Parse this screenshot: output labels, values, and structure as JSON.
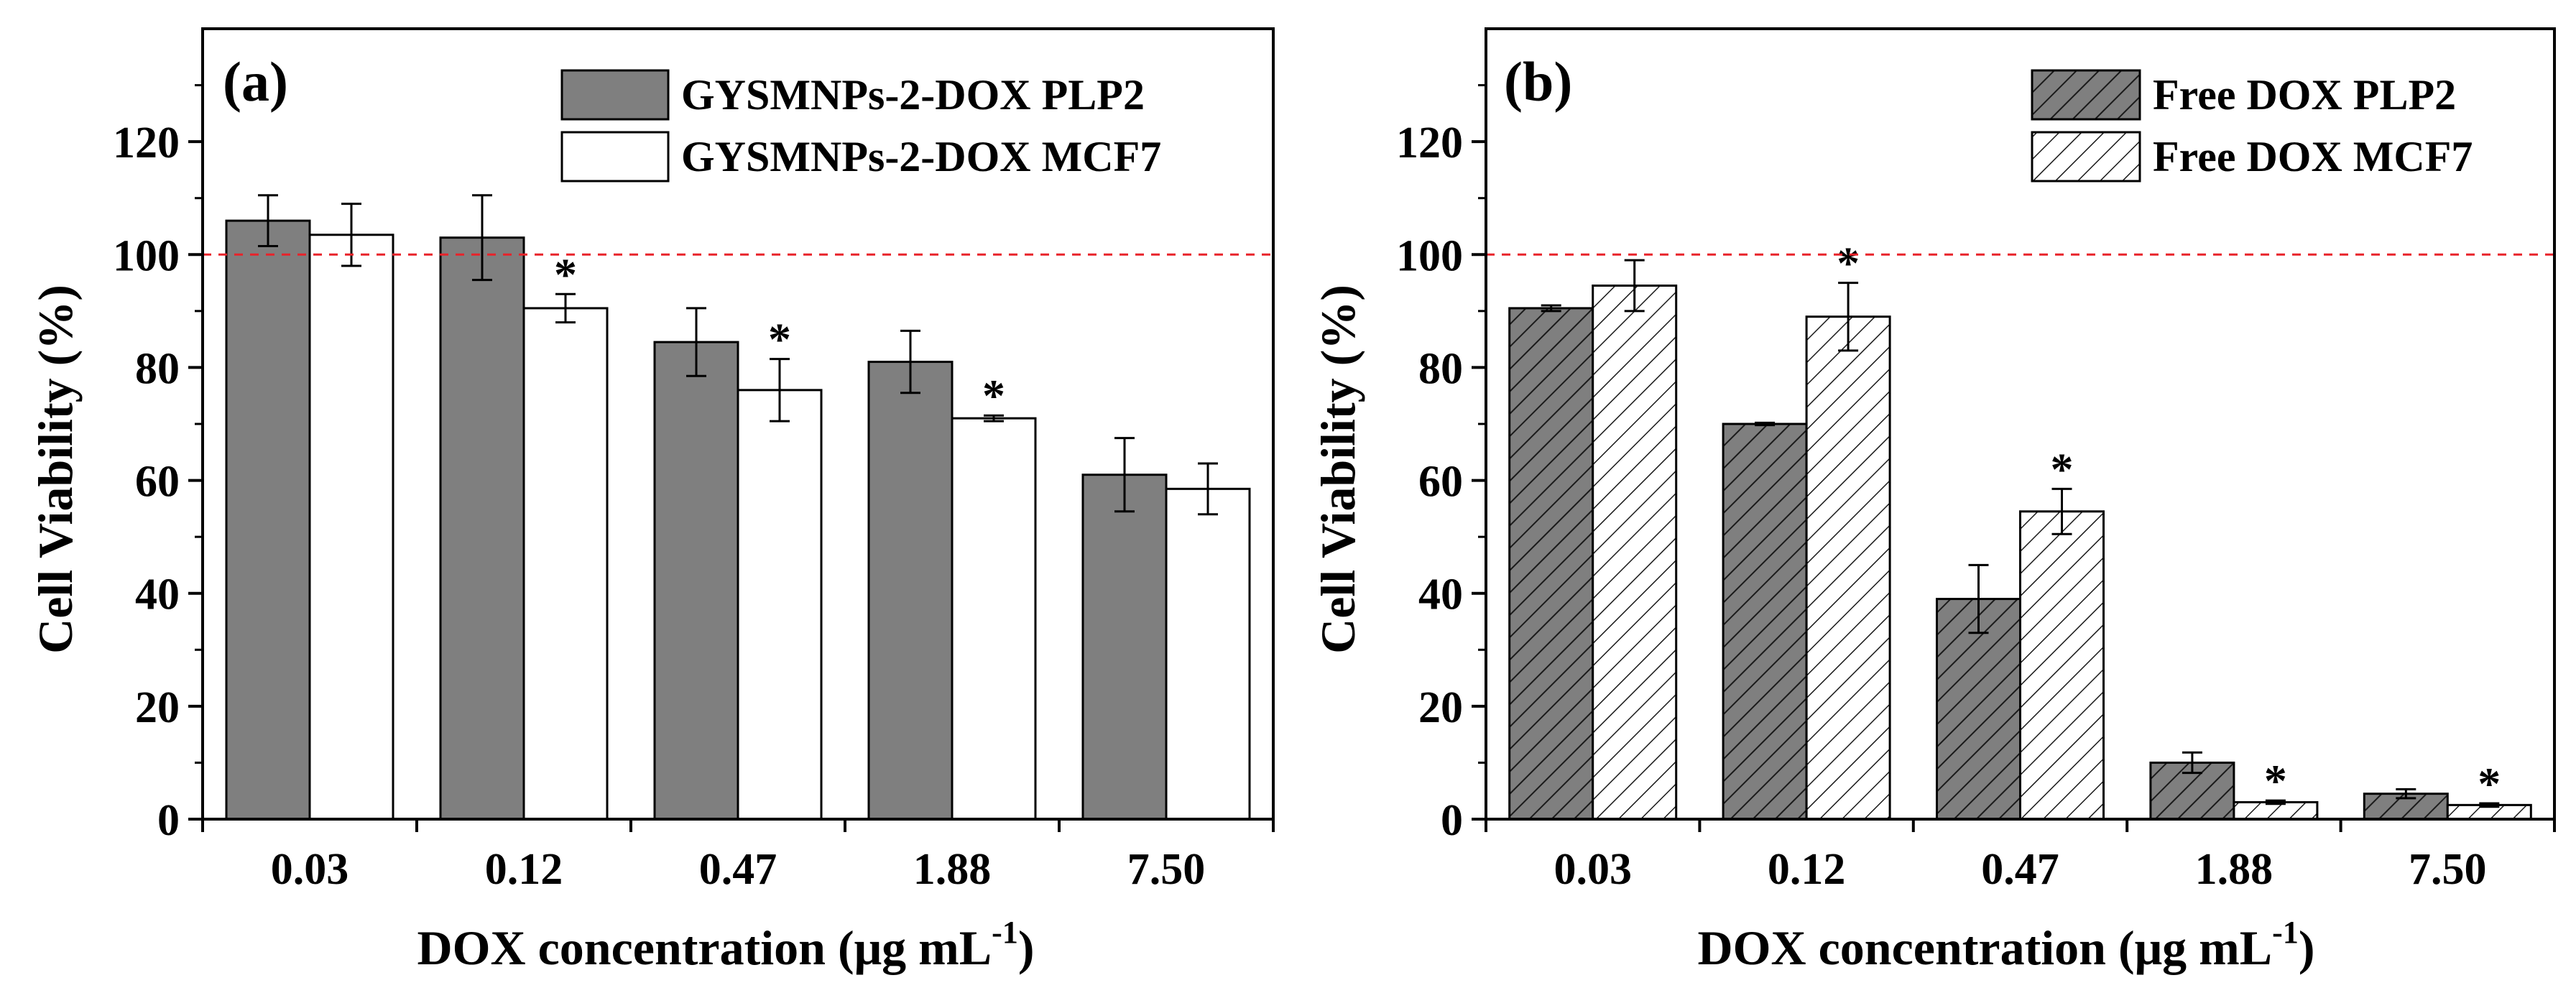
{
  "colors": {
    "plp2": "#7f7f7f",
    "mcf7": "#ffffff",
    "free_plp2": "#7f7f7f",
    "free_mcf7": "#ffffff",
    "reference_line": "#e8232a",
    "axis": "#000000"
  },
  "chart_data": [
    {
      "type": "bar",
      "panel_label": "(a)",
      "xlabel": "DOX concentration (μg mL",
      "xlabel_superscript": "-1",
      "xlabel_close": ")",
      "ylabel": "Cell Viability (%)",
      "ylim": [
        0,
        140
      ],
      "yticks": [
        0,
        20,
        40,
        60,
        80,
        100,
        120
      ],
      "reference_line": 100,
      "categories": [
        "0.03",
        "0.12",
        "0.47",
        "1.88",
        "7.50"
      ],
      "legend_position": "top-right",
      "series": [
        {
          "name": "GYSMNPs-2-DOX PLP2",
          "pattern": "solid-gray",
          "values": [
            106,
            103,
            84.5,
            81,
            61
          ],
          "errors": [
            4.5,
            7.5,
            6,
            5.5,
            6.5
          ],
          "significant": [
            false,
            false,
            false,
            false,
            false
          ]
        },
        {
          "name": "GYSMNPs-2-DOX MCF7",
          "pattern": "white",
          "values": [
            103.5,
            90.5,
            76,
            71,
            58.5
          ],
          "errors": [
            5.5,
            2.5,
            5.5,
            0.5,
            4.5
          ],
          "significant": [
            false,
            true,
            true,
            true,
            false
          ]
        }
      ],
      "significance_marker": "*"
    },
    {
      "type": "bar",
      "panel_label": "(b)",
      "xlabel": "DOX concentration (μg mL",
      "xlabel_superscript": "-1",
      "xlabel_close": ")",
      "ylabel": "Cell Viability (%)",
      "ylim": [
        0,
        140
      ],
      "yticks": [
        0,
        20,
        40,
        60,
        80,
        100,
        120
      ],
      "reference_line": 100,
      "categories": [
        "0.03",
        "0.12",
        "0.47",
        "1.88",
        "7.50"
      ],
      "legend_position": "top-right",
      "series": [
        {
          "name": "Free DOX PLP2",
          "pattern": "hatched-gray",
          "values": [
            90.5,
            70,
            39,
            10,
            4.5
          ],
          "errors": [
            0.5,
            0.2,
            6,
            1.8,
            0.8
          ],
          "significant": [
            false,
            false,
            false,
            false,
            false
          ]
        },
        {
          "name": "Free DOX MCF7",
          "pattern": "hatched-white",
          "values": [
            94.5,
            89,
            54.5,
            3,
            2.5
          ],
          "errors": [
            4.5,
            6,
            4,
            0.3,
            0.3
          ],
          "significant": [
            false,
            true,
            true,
            true,
            true
          ]
        }
      ],
      "significance_marker": "*"
    }
  ]
}
